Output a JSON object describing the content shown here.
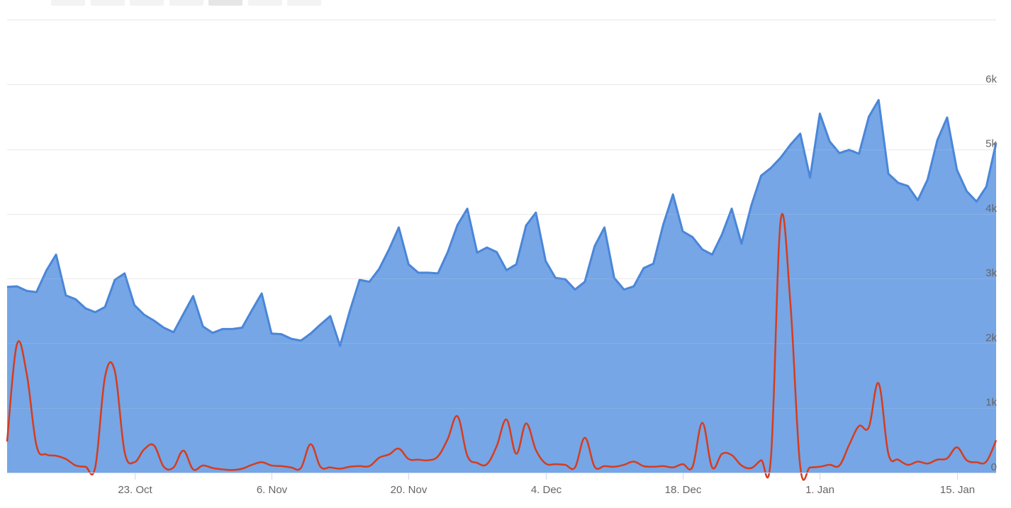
{
  "range_selector": {
    "buttons": [
      {
        "label": "",
        "state": "normal"
      },
      {
        "label": "",
        "state": "normal"
      },
      {
        "label": "",
        "state": "normal"
      },
      {
        "label": "",
        "state": "normal"
      },
      {
        "label": "",
        "state": "active"
      },
      {
        "label": "",
        "state": "disabled"
      },
      {
        "label": "",
        "state": "normal"
      }
    ]
  },
  "chart_data": {
    "type": "area",
    "title": "",
    "xlabel": "",
    "ylabel": "",
    "x_type": "date",
    "x_start": "2017-10-10",
    "x_end": "2018-01-19",
    "x_ticks": [
      {
        "date": "2017-10-23",
        "label": "23. Oct"
      },
      {
        "date": "2017-11-06",
        "label": "6. Nov"
      },
      {
        "date": "2017-11-20",
        "label": "20. Nov"
      },
      {
        "date": "2017-12-04",
        "label": "4. Dec"
      },
      {
        "date": "2017-12-18",
        "label": "18. Dec"
      },
      {
        "date": "2018-01-01",
        "label": "1. Jan"
      },
      {
        "date": "2018-01-15",
        "label": "15. Jan"
      }
    ],
    "y_ticks": [
      {
        "value": 0,
        "label": "0"
      },
      {
        "value": 1000,
        "label": "1k"
      },
      {
        "value": 2000,
        "label": "2k"
      },
      {
        "value": 3000,
        "label": "3k"
      },
      {
        "value": 4000,
        "label": "4k"
      },
      {
        "value": 5000,
        "label": "5k"
      },
      {
        "value": 6000,
        "label": "6k"
      }
    ],
    "ylim": [
      0,
      7000
    ],
    "grid": true,
    "legend": "none",
    "series": [
      {
        "type": "area",
        "color": "#4a86d9",
        "fill": "#76a6e5",
        "points": [
          [
            "2017-10-10",
            2870
          ],
          [
            "2017-10-11",
            2880
          ],
          [
            "2017-10-12",
            2810
          ],
          [
            "2017-10-13",
            2790
          ],
          [
            "2017-10-14",
            3120
          ],
          [
            "2017-10-15",
            3370
          ],
          [
            "2017-10-16",
            2740
          ],
          [
            "2017-10-17",
            2680
          ],
          [
            "2017-10-18",
            2540
          ],
          [
            "2017-10-19",
            2480
          ],
          [
            "2017-10-20",
            2560
          ],
          [
            "2017-10-21",
            2980
          ],
          [
            "2017-10-22",
            3080
          ],
          [
            "2017-10-23",
            2590
          ],
          [
            "2017-10-24",
            2440
          ],
          [
            "2017-10-25",
            2350
          ],
          [
            "2017-10-26",
            2240
          ],
          [
            "2017-10-27",
            2170
          ],
          [
            "2017-10-28",
            2450
          ],
          [
            "2017-10-29",
            2730
          ],
          [
            "2017-10-30",
            2260
          ],
          [
            "2017-10-31",
            2160
          ],
          [
            "2017-11-01",
            2220
          ],
          [
            "2017-11-02",
            2220
          ],
          [
            "2017-11-03",
            2240
          ],
          [
            "2017-11-04",
            2510
          ],
          [
            "2017-11-05",
            2770
          ],
          [
            "2017-11-06",
            2150
          ],
          [
            "2017-11-07",
            2140
          ],
          [
            "2017-11-08",
            2070
          ],
          [
            "2017-11-09",
            2040
          ],
          [
            "2017-11-10",
            2150
          ],
          [
            "2017-11-11",
            2290
          ],
          [
            "2017-11-12",
            2420
          ],
          [
            "2017-11-13",
            1960
          ],
          [
            "2017-11-14",
            2500
          ],
          [
            "2017-11-15",
            2980
          ],
          [
            "2017-11-16",
            2950
          ],
          [
            "2017-11-17",
            3150
          ],
          [
            "2017-11-18",
            3450
          ],
          [
            "2017-11-19",
            3790
          ],
          [
            "2017-11-20",
            3220
          ],
          [
            "2017-11-21",
            3090
          ],
          [
            "2017-11-22",
            3090
          ],
          [
            "2017-11-23",
            3080
          ],
          [
            "2017-11-24",
            3410
          ],
          [
            "2017-11-25",
            3830
          ],
          [
            "2017-11-26",
            4080
          ],
          [
            "2017-11-27",
            3400
          ],
          [
            "2017-11-28",
            3480
          ],
          [
            "2017-11-29",
            3410
          ],
          [
            "2017-11-30",
            3130
          ],
          [
            "2017-12-01",
            3220
          ],
          [
            "2017-12-02",
            3820
          ],
          [
            "2017-12-03",
            4020
          ],
          [
            "2017-12-04",
            3270
          ],
          [
            "2017-12-05",
            3010
          ],
          [
            "2017-12-06",
            2990
          ],
          [
            "2017-12-07",
            2830
          ],
          [
            "2017-12-08",
            2950
          ],
          [
            "2017-12-09",
            3500
          ],
          [
            "2017-12-10",
            3790
          ],
          [
            "2017-12-11",
            3010
          ],
          [
            "2017-12-12",
            2830
          ],
          [
            "2017-12-13",
            2880
          ],
          [
            "2017-12-14",
            3160
          ],
          [
            "2017-12-15",
            3230
          ],
          [
            "2017-12-16",
            3830
          ],
          [
            "2017-12-17",
            4300
          ],
          [
            "2017-12-18",
            3730
          ],
          [
            "2017-12-19",
            3640
          ],
          [
            "2017-12-20",
            3450
          ],
          [
            "2017-12-21",
            3370
          ],
          [
            "2017-12-22",
            3680
          ],
          [
            "2017-12-23",
            4080
          ],
          [
            "2017-12-24",
            3540
          ],
          [
            "2017-12-25",
            4130
          ],
          [
            "2017-12-26",
            4590
          ],
          [
            "2017-12-27",
            4710
          ],
          [
            "2017-12-28",
            4870
          ],
          [
            "2017-12-29",
            5070
          ],
          [
            "2017-12-30",
            5240
          ],
          [
            "2017-12-31",
            4560
          ],
          [
            "2018-01-01",
            5550
          ],
          [
            "2018-01-02",
            5120
          ],
          [
            "2018-01-03",
            4940
          ],
          [
            "2018-01-04",
            4990
          ],
          [
            "2018-01-05",
            4930
          ],
          [
            "2018-01-06",
            5500
          ],
          [
            "2018-01-07",
            5760
          ],
          [
            "2018-01-08",
            4620
          ],
          [
            "2018-01-09",
            4480
          ],
          [
            "2018-01-10",
            4430
          ],
          [
            "2018-01-11",
            4210
          ],
          [
            "2018-01-12",
            4530
          ],
          [
            "2018-01-13",
            5140
          ],
          [
            "2018-01-14",
            5490
          ],
          [
            "2018-01-15",
            4680
          ],
          [
            "2018-01-16",
            4350
          ],
          [
            "2018-01-17",
            4190
          ],
          [
            "2018-01-18",
            4420
          ],
          [
            "2018-01-19",
            5100
          ]
        ]
      },
      {
        "type": "spline",
        "color": "#d63c1e",
        "points": [
          [
            "2017-10-10",
            480
          ],
          [
            "2017-10-11",
            1980
          ],
          [
            "2017-10-12",
            1530
          ],
          [
            "2017-10-13",
            420
          ],
          [
            "2017-10-14",
            280
          ],
          [
            "2017-10-15",
            260
          ],
          [
            "2017-10-16",
            210
          ],
          [
            "2017-10-17",
            110
          ],
          [
            "2017-10-18",
            90
          ],
          [
            "2017-10-19",
            80
          ],
          [
            "2017-10-20",
            1480
          ],
          [
            "2017-10-21",
            1570
          ],
          [
            "2017-10-22",
            320
          ],
          [
            "2017-10-23",
            160
          ],
          [
            "2017-10-24",
            360
          ],
          [
            "2017-10-25",
            420
          ],
          [
            "2017-10-26",
            90
          ],
          [
            "2017-10-27",
            80
          ],
          [
            "2017-10-28",
            340
          ],
          [
            "2017-10-29",
            50
          ],
          [
            "2017-10-30",
            110
          ],
          [
            "2017-10-31",
            70
          ],
          [
            "2017-11-01",
            50
          ],
          [
            "2017-11-02",
            40
          ],
          [
            "2017-11-03",
            60
          ],
          [
            "2017-11-04",
            120
          ],
          [
            "2017-11-05",
            160
          ],
          [
            "2017-11-06",
            110
          ],
          [
            "2017-11-07",
            100
          ],
          [
            "2017-11-08",
            80
          ],
          [
            "2017-11-09",
            70
          ],
          [
            "2017-11-10",
            440
          ],
          [
            "2017-11-11",
            90
          ],
          [
            "2017-11-12",
            80
          ],
          [
            "2017-11-13",
            60
          ],
          [
            "2017-11-14",
            90
          ],
          [
            "2017-11-15",
            100
          ],
          [
            "2017-11-16",
            100
          ],
          [
            "2017-11-17",
            230
          ],
          [
            "2017-11-18",
            280
          ],
          [
            "2017-11-19",
            370
          ],
          [
            "2017-11-20",
            210
          ],
          [
            "2017-11-21",
            200
          ],
          [
            "2017-11-22",
            190
          ],
          [
            "2017-11-23",
            250
          ],
          [
            "2017-11-24",
            520
          ],
          [
            "2017-11-25",
            870
          ],
          [
            "2017-11-26",
            260
          ],
          [
            "2017-11-27",
            150
          ],
          [
            "2017-11-28",
            130
          ],
          [
            "2017-11-29",
            410
          ],
          [
            "2017-11-30",
            820
          ],
          [
            "2017-12-01",
            290
          ],
          [
            "2017-12-02",
            760
          ],
          [
            "2017-12-03",
            350
          ],
          [
            "2017-12-04",
            140
          ],
          [
            "2017-12-05",
            130
          ],
          [
            "2017-12-06",
            120
          ],
          [
            "2017-12-07",
            80
          ],
          [
            "2017-12-08",
            540
          ],
          [
            "2017-12-09",
            90
          ],
          [
            "2017-12-10",
            100
          ],
          [
            "2017-12-11",
            90
          ],
          [
            "2017-12-12",
            120
          ],
          [
            "2017-12-13",
            170
          ],
          [
            "2017-12-14",
            100
          ],
          [
            "2017-12-15",
            90
          ],
          [
            "2017-12-16",
            100
          ],
          [
            "2017-12-17",
            80
          ],
          [
            "2017-12-18",
            130
          ],
          [
            "2017-12-19",
            90
          ],
          [
            "2017-12-20",
            770
          ],
          [
            "2017-12-21",
            80
          ],
          [
            "2017-12-22",
            290
          ],
          [
            "2017-12-23",
            270
          ],
          [
            "2017-12-24",
            110
          ],
          [
            "2017-12-25",
            70
          ],
          [
            "2017-12-26",
            190
          ],
          [
            "2017-12-27",
            220
          ],
          [
            "2017-12-28",
            3900
          ],
          [
            "2017-12-29",
            2600
          ],
          [
            "2017-12-30",
            90
          ],
          [
            "2017-12-31",
            80
          ],
          [
            "2018-01-01",
            90
          ],
          [
            "2018-01-02",
            120
          ],
          [
            "2018-01-03",
            110
          ],
          [
            "2018-01-04",
            430
          ],
          [
            "2018-01-05",
            720
          ],
          [
            "2018-01-06",
            700
          ],
          [
            "2018-01-07",
            1380
          ],
          [
            "2018-01-08",
            290
          ],
          [
            "2018-01-09",
            200
          ],
          [
            "2018-01-10",
            120
          ],
          [
            "2018-01-11",
            170
          ],
          [
            "2018-01-12",
            140
          ],
          [
            "2018-01-13",
            200
          ],
          [
            "2018-01-14",
            220
          ],
          [
            "2018-01-15",
            390
          ],
          [
            "2018-01-16",
            190
          ],
          [
            "2018-01-17",
            160
          ],
          [
            "2018-01-18",
            170
          ],
          [
            "2018-01-19",
            500
          ]
        ]
      }
    ]
  }
}
